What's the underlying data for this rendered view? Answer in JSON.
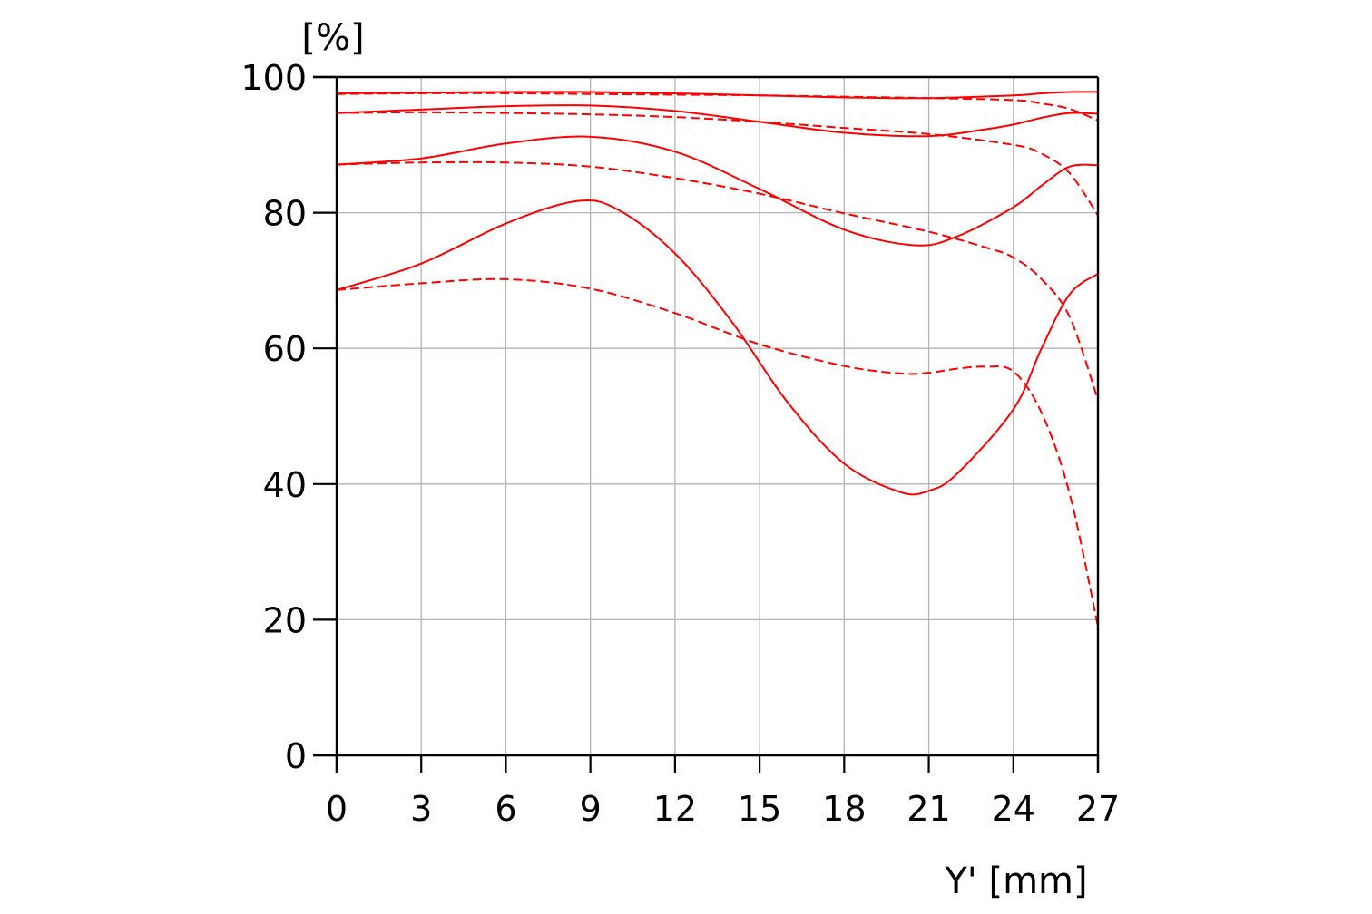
{
  "chart_data": {
    "type": "line",
    "title": "",
    "ylabel": "[%]",
    "xlabel": "Y' [mm]",
    "xlim": [
      0,
      27
    ],
    "ylim": [
      0,
      100
    ],
    "x_ticks": [
      0,
      3,
      6,
      9,
      12,
      15,
      18,
      21,
      24,
      27
    ],
    "y_ticks": [
      0,
      20,
      40,
      60,
      80,
      100
    ],
    "x_tick_labels": [
      "0",
      "3",
      "6",
      "9",
      "12",
      "15",
      "18",
      "21",
      "24",
      "27"
    ],
    "y_tick_labels": [
      "0",
      "20",
      "40",
      "60",
      "80",
      "100"
    ],
    "grid": true,
    "legend": "none",
    "line_color": "#ff0000",
    "grid_color": "#b4b4b4",
    "axis_color": "#000000",
    "series": [
      {
        "style": "solid",
        "x": [
          0,
          3,
          6,
          9,
          12,
          15,
          18,
          21,
          24,
          25,
          26,
          27
        ],
        "y": [
          97.6,
          97.7,
          97.8,
          97.8,
          97.6,
          97.3,
          97.0,
          96.9,
          97.3,
          97.6,
          97.8,
          97.8
        ]
      },
      {
        "style": "dashed",
        "x": [
          0,
          3,
          6,
          9,
          12,
          15,
          18,
          21,
          24,
          25,
          26,
          27
        ],
        "y": [
          97.5,
          97.6,
          97.6,
          97.5,
          97.4,
          97.3,
          97.1,
          96.9,
          96.6,
          96.1,
          95.3,
          93.6
        ]
      },
      {
        "style": "solid",
        "x": [
          0,
          3,
          6,
          9,
          12,
          15,
          18,
          21,
          23,
          24,
          25,
          26,
          27
        ],
        "y": [
          94.7,
          95.2,
          95.7,
          95.8,
          95.0,
          93.4,
          91.8,
          91.3,
          92.3,
          93.0,
          94.0,
          94.7,
          94.6
        ]
      },
      {
        "style": "dashed",
        "x": [
          0,
          3,
          6,
          9,
          12,
          15,
          18,
          21,
          24,
          25,
          26,
          27
        ],
        "y": [
          94.7,
          94.8,
          94.7,
          94.5,
          94.1,
          93.4,
          92.5,
          91.6,
          90.0,
          88.7,
          85.8,
          79.6
        ]
      },
      {
        "style": "solid",
        "x": [
          0,
          3,
          6,
          9,
          12,
          15,
          18,
          20.5,
          22,
          24,
          25,
          26,
          27
        ],
        "y": [
          87.1,
          88.0,
          90.2,
          91.2,
          89.0,
          83.5,
          77.5,
          75.2,
          76.5,
          80.8,
          84.0,
          86.8,
          87.0
        ]
      },
      {
        "style": "dashed",
        "x": [
          0,
          3,
          6,
          9,
          12,
          15,
          18,
          21,
          23,
          24,
          25,
          26,
          27
        ],
        "y": [
          87.1,
          87.4,
          87.4,
          86.8,
          85.1,
          82.8,
          79.9,
          77.2,
          74.9,
          73.4,
          70.2,
          64.6,
          52.4
        ]
      },
      {
        "style": "solid",
        "x": [
          0,
          3,
          6,
          8.5,
          10,
          12,
          14,
          16,
          18,
          20,
          21,
          22,
          24,
          25,
          26,
          27
        ],
        "y": [
          68.6,
          72.5,
          78.4,
          81.7,
          80.4,
          74.0,
          64.0,
          52.0,
          43.0,
          38.8,
          39.0,
          41.5,
          51.0,
          60.0,
          68.0,
          71.0
        ]
      },
      {
        "style": "dashed",
        "x": [
          0,
          3,
          6,
          9,
          12,
          15,
          18,
          20,
          21,
          22,
          23,
          24,
          25,
          26,
          27
        ],
        "y": [
          68.6,
          69.6,
          70.2,
          68.8,
          65.2,
          60.6,
          57.4,
          56.3,
          56.4,
          57.0,
          57.3,
          56.6,
          50.5,
          38.5,
          19.0
        ]
      }
    ]
  }
}
